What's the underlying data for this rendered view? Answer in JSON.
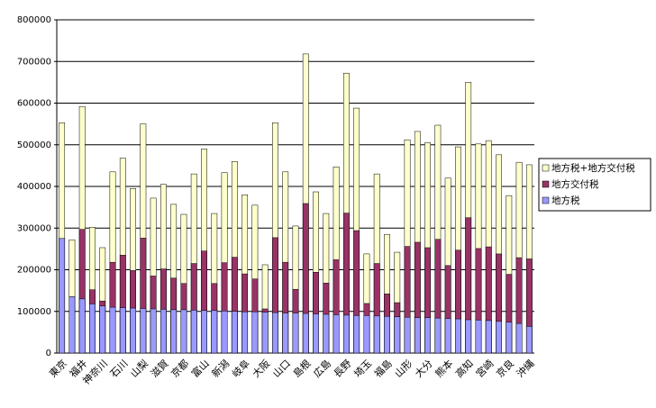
{
  "chart_data": {
    "type": "bar",
    "categories": [
      "東京",
      null,
      "福井",
      null,
      "神奈川",
      null,
      "石川",
      null,
      "山梨",
      null,
      "滋賀",
      null,
      "京都",
      null,
      "富山",
      null,
      "新潟",
      null,
      "岐阜",
      null,
      "大阪",
      null,
      "山口",
      null,
      "島根",
      null,
      "広島",
      null,
      "長野",
      null,
      "埼玉",
      null,
      "福島",
      null,
      "山形",
      null,
      "大分",
      null,
      "熊本",
      null,
      "高知",
      null,
      "宮崎",
      null,
      "京良",
      null,
      "沖縄"
    ],
    "series": [
      {
        "name": "地方税+地方交付税",
        "color": "#ffffcc",
        "values": [
          553000,
          272000,
          592000,
          302000,
          253000,
          435000,
          468000,
          395000,
          550000,
          372000,
          405000,
          357000,
          333000,
          430000,
          490000,
          335000,
          433000,
          460000,
          380000,
          355000,
          212000,
          553000,
          435000,
          305000,
          718000,
          387000,
          335000,
          447000,
          672000,
          588000,
          238000,
          430000,
          285000,
          242000,
          512000,
          532000,
          505000,
          547000,
          420000,
          495000,
          650000,
          502000,
          510000,
          476000,
          378000,
          458000,
          452000
        ]
      },
      {
        "name": "地方交付税",
        "color": "#993366",
        "values": [
          275000,
          135000,
          297000,
          152000,
          125000,
          218000,
          235000,
          198000,
          276000,
          185000,
          202000,
          180000,
          167000,
          215000,
          245000,
          167000,
          217000,
          230000,
          190000,
          178000,
          106000,
          277000,
          218000,
          153000,
          359000,
          194000,
          168000,
          224000,
          336000,
          294000,
          119000,
          215000,
          142000,
          121000,
          256000,
          266000,
          253000,
          273000,
          210000,
          247000,
          325000,
          251000,
          255000,
          238000,
          189000,
          229000,
          226000
        ]
      },
      {
        "name": "地方税",
        "color": "#9999ff",
        "values": [
          275000,
          135000,
          130000,
          118000,
          113000,
          110000,
          109000,
          108000,
          107000,
          106000,
          105000,
          104000,
          104000,
          103000,
          102000,
          102000,
          101000,
          100000,
          99000,
          99000,
          98000,
          97000,
          96000,
          96000,
          95000,
          94000,
          93000,
          92000,
          91000,
          90000,
          90000,
          89000,
          88000,
          87000,
          86000,
          85000,
          85000,
          84000,
          83000,
          82000,
          80000,
          79000,
          78000,
          76000,
          74000,
          71000,
          64000
        ]
      }
    ],
    "ylim": [
      0,
      800000
    ],
    "yticks": [
      0,
      100000,
      200000,
      300000,
      400000,
      500000,
      600000,
      700000,
      800000
    ],
    "grid": true,
    "legend": "right"
  }
}
